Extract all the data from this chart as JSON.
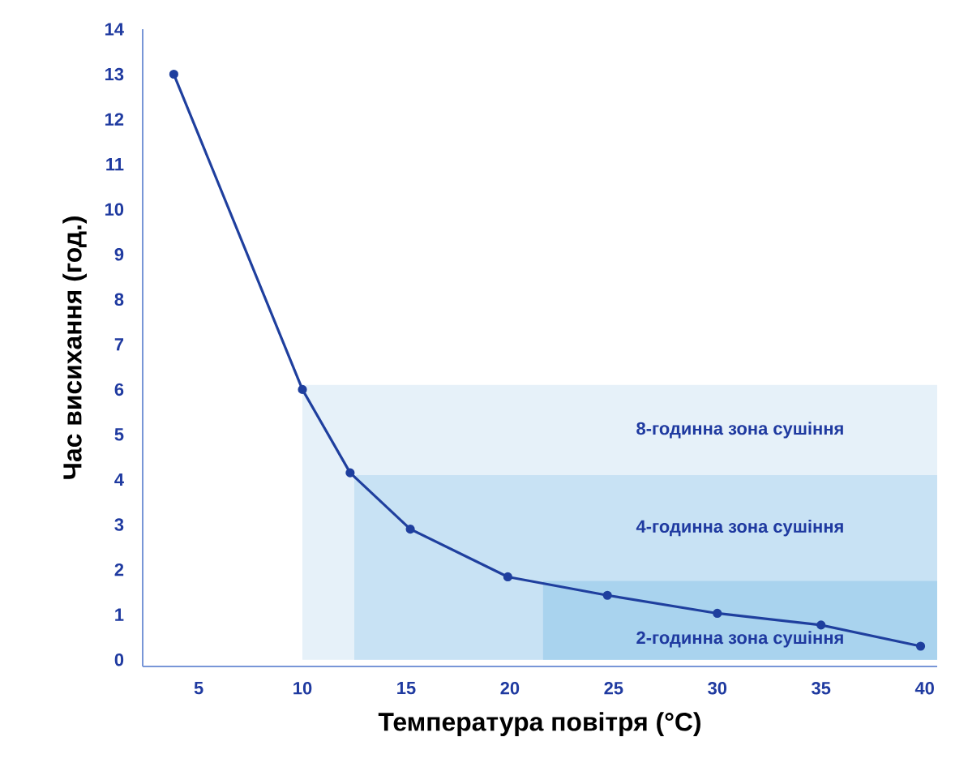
{
  "chart_data": {
    "type": "line",
    "xlabel": "Температура повітря (°C)",
    "ylabel": "Час висихання (год.)",
    "xlim": [
      2.3,
      40.6
    ],
    "ylim": [
      -0.15,
      14
    ],
    "xticks": [
      5,
      10,
      15,
      20,
      25,
      30,
      35,
      40
    ],
    "yticks": [
      0,
      1,
      2,
      3,
      4,
      5,
      6,
      7,
      8,
      9,
      10,
      11,
      12,
      13,
      14
    ],
    "grid": false,
    "line_style": "solid",
    "series": [
      {
        "type": "area",
        "name": "8-годинна зона сушіння",
        "color": "#e6f1f9",
        "x": [
          10,
          40.6
        ],
        "values": [
          6.1,
          6.1
        ]
      },
      {
        "type": "area",
        "name": "4-годинна зона сушіння",
        "color": "#c8e2f4",
        "x": [
          12.5,
          40.6
        ],
        "values": [
          4.1,
          4.1
        ]
      },
      {
        "type": "area",
        "name": "2-годинна зона сушіння",
        "color": "#a9d3ee",
        "x": [
          21.6,
          40.6
        ],
        "values": [
          1.75,
          1.75
        ]
      },
      {
        "marker": "circle",
        "color": "#1f3f9e",
        "x": [
          3.8,
          10,
          12.3,
          15.2,
          19.9,
          24.7,
          30,
          35,
          39.8
        ],
        "values": [
          13,
          6,
          4.15,
          2.9,
          1.84,
          1.43,
          1.03,
          0.77,
          0.3
        ]
      }
    ]
  }
}
